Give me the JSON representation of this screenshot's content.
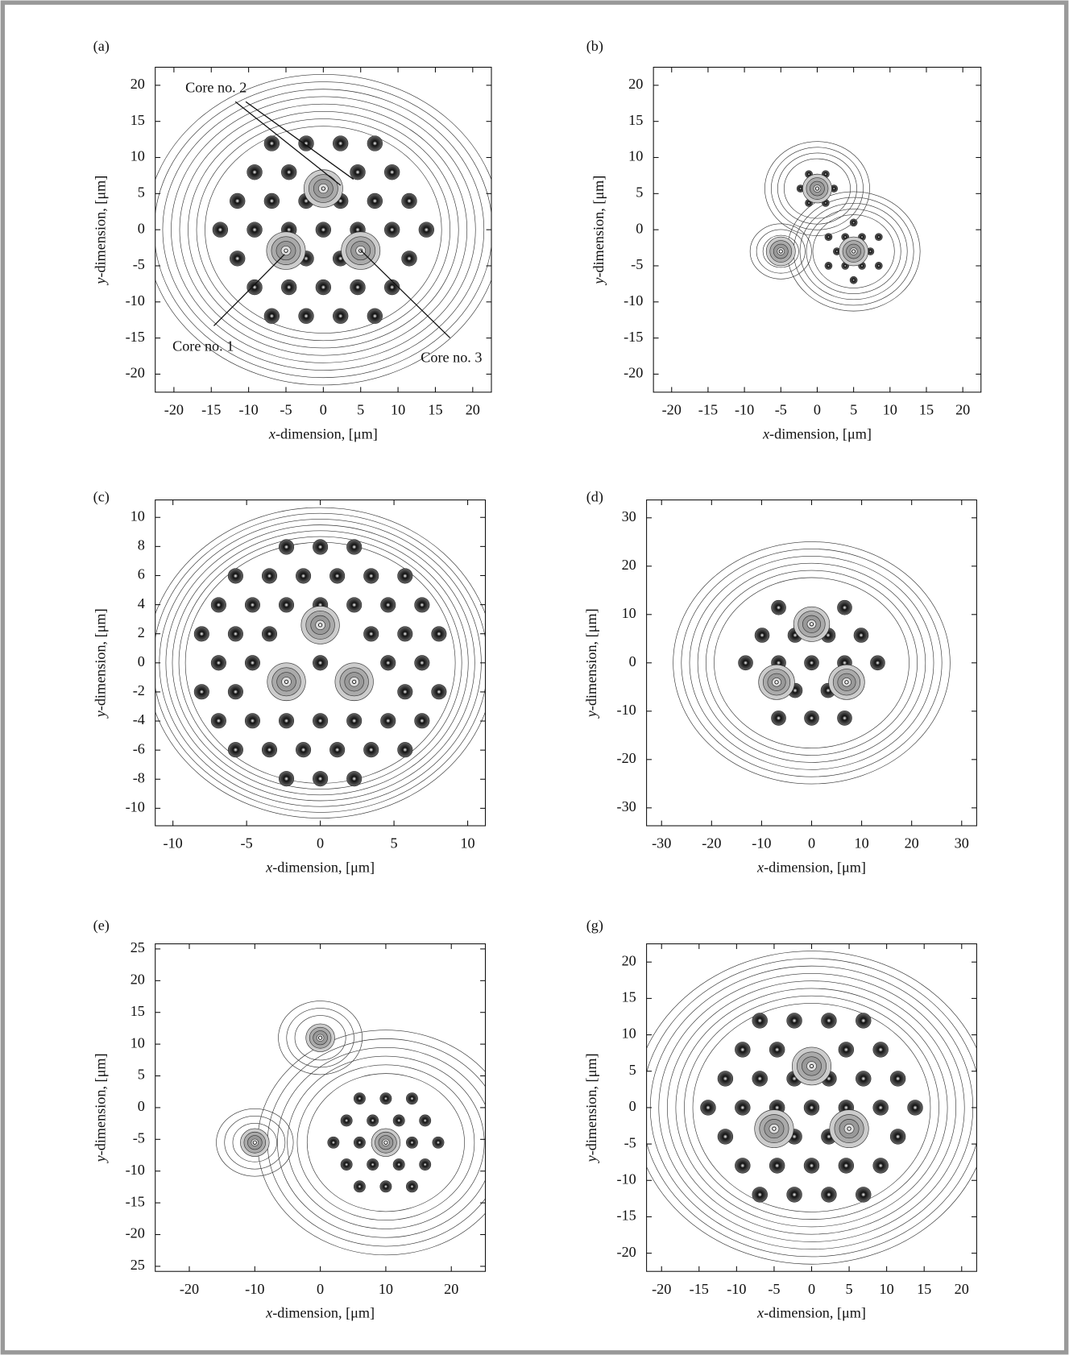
{
  "chart_data": [
    {
      "type": "contour",
      "panel": "(a)",
      "xlabel_var": "x",
      "xlabel": "-dimension, [μm]",
      "ylabel_var": "y",
      "ylabel": "-dimension, [μm]",
      "xlim": [
        -22.5,
        22.5
      ],
      "ylim": [
        -22.5,
        22.5
      ],
      "xticks": [
        -20,
        -15,
        -10,
        -5,
        0,
        5,
        10,
        15,
        20
      ],
      "yticks": [
        20,
        15,
        10,
        5,
        0,
        -5,
        -10,
        -15,
        -20
      ],
      "annotations": [
        "Core no. 2",
        "Core no. 1",
        "Core no. 3"
      ]
    },
    {
      "type": "contour",
      "panel": "(b)",
      "xlabel_var": "x",
      "xlabel": "-dimension, [μm]",
      "ylabel_var": "y",
      "ylabel": "-dimension, [μm]",
      "xlim": [
        -22.5,
        22.5
      ],
      "ylim": [
        -22.5,
        22.5
      ],
      "xticks": [
        -20,
        -15,
        -10,
        -5,
        0,
        5,
        10,
        15,
        20
      ],
      "yticks": [
        20,
        15,
        10,
        5,
        0,
        -5,
        -10,
        -15,
        -20
      ]
    },
    {
      "type": "contour",
      "panel": "(c)",
      "xlabel_var": "x",
      "xlabel": "-dimension, [μm]",
      "ylabel_var": "y",
      "ylabel": "-dimension, [μm]",
      "xlim": [
        -11.2,
        11.2
      ],
      "ylim": [
        -11.2,
        11.2
      ],
      "xticks": [
        -10,
        -5,
        0,
        5,
        10
      ],
      "yticks": [
        10,
        8,
        6,
        4,
        2,
        0,
        -2,
        -4,
        -6,
        -8,
        -10
      ]
    },
    {
      "type": "contour",
      "panel": "(d)",
      "xlabel_var": "x",
      "xlabel": "-dimension, [μm]",
      "ylabel_var": "y",
      "ylabel": "-dimension, [μm]",
      "xlim": [
        -33,
        33
      ],
      "ylim": [
        -33.7,
        33.7
      ],
      "xticks": [
        -30,
        -20,
        -10,
        0,
        10,
        20,
        30
      ],
      "yticks": [
        30,
        20,
        10,
        0,
        -10,
        -20,
        -30
      ]
    },
    {
      "type": "contour",
      "panel": "(e)",
      "xlabel_var": "x",
      "xlabel": "-dimension, [μm]",
      "ylabel_var": "y",
      "ylabel": "-dimension, [μm]",
      "xlim": [
        -25.2,
        25.2
      ],
      "ylim": [
        -25.8,
        25.8
      ],
      "xticks": [
        -20,
        -10,
        0,
        10,
        20
      ],
      "yticks": [
        25,
        20,
        15,
        10,
        5,
        0,
        -5,
        -10,
        -15,
        -20,
        {
          "value": -25,
          "label": "25"
        }
      ]
    },
    {
      "type": "contour",
      "panel": "(g)",
      "xlabel_var": "x",
      "xlabel": "-dimension, [μm]",
      "ylabel_var": "y",
      "ylabel": "-dimension, [μm]",
      "xlim": [
        -22,
        22
      ],
      "ylim": [
        -22.5,
        22.5
      ],
      "xticks": [
        -20,
        -15,
        -10,
        -5,
        0,
        5,
        10,
        15,
        20
      ],
      "yticks": [
        20,
        15,
        10,
        5,
        0,
        -5,
        -10,
        -15,
        -20
      ]
    }
  ]
}
